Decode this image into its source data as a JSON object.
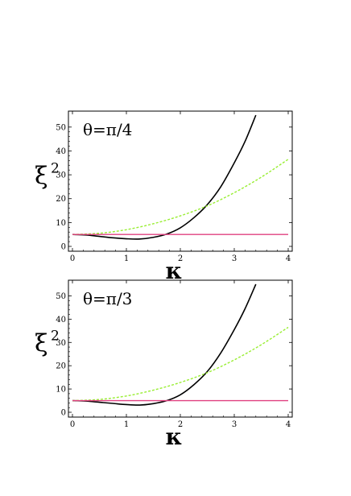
{
  "colors": {
    "background": "#ffffff",
    "frame": "#000000",
    "black_curve": "#000000",
    "green_curve": "#99ee33",
    "pink_line": "#e04080"
  },
  "chart_data": [
    {
      "type": "line",
      "annotation": "θ=π/4",
      "ylabel": "ξ",
      "ylabel_sup": "2",
      "xlabel": "κ",
      "xlim": [
        0,
        4
      ],
      "ylim": [
        0,
        55
      ],
      "xticks": [
        0,
        1,
        2,
        3,
        4
      ],
      "yticks": [
        0,
        10,
        20,
        30,
        40,
        50
      ],
      "series": [
        {
          "color": "#000000",
          "style": "solid",
          "x": [
            0,
            0.25,
            0.5,
            0.75,
            1.0,
            1.25,
            1.5,
            1.75,
            2.0,
            2.25,
            2.5,
            2.75,
            3.0,
            3.2,
            3.4
          ],
          "y": [
            5.0,
            4.8,
            4.2,
            3.6,
            3.2,
            3.1,
            3.8,
            5.2,
            7.8,
            12.0,
            17.5,
            25.0,
            35.0,
            44.0,
            55.0
          ]
        },
        {
          "color": "#99ee33",
          "style": "dashed",
          "x": [
            0,
            0.5,
            1.0,
            1.5,
            2.0,
            2.5,
            3.0,
            3.5,
            4.0
          ],
          "y": [
            5.0,
            5.5,
            7.0,
            9.5,
            12.8,
            17.0,
            22.5,
            29.0,
            36.5
          ]
        },
        {
          "color": "#e04080",
          "style": "solid",
          "x": [
            0,
            4
          ],
          "y": [
            5.0,
            5.0
          ]
        }
      ]
    },
    {
      "type": "line",
      "annotation": "θ=π/3",
      "ylabel": "ξ",
      "ylabel_sup": "2",
      "xlabel": "κ",
      "xlim": [
        0,
        4
      ],
      "ylim": [
        0,
        55
      ],
      "xticks": [
        0,
        1,
        2,
        3,
        4
      ],
      "yticks": [
        0,
        10,
        20,
        30,
        40,
        50
      ],
      "series": [
        {
          "color": "#000000",
          "style": "solid",
          "x": [
            0,
            0.25,
            0.5,
            0.75,
            1.0,
            1.25,
            1.5,
            1.75,
            2.0,
            2.25,
            2.5,
            2.75,
            3.0,
            3.2,
            3.4
          ],
          "y": [
            5.0,
            4.8,
            4.3,
            3.8,
            3.3,
            3.1,
            3.7,
            5.0,
            7.5,
            11.8,
            17.5,
            25.5,
            35.5,
            44.5,
            55.0
          ]
        },
        {
          "color": "#99ee33",
          "style": "dashed",
          "x": [
            0,
            0.5,
            1.0,
            1.5,
            2.0,
            2.5,
            3.0,
            3.5,
            4.0
          ],
          "y": [
            5.0,
            5.5,
            7.0,
            9.5,
            12.8,
            17.0,
            22.5,
            29.0,
            36.5
          ]
        },
        {
          "color": "#e04080",
          "style": "solid",
          "x": [
            0,
            4
          ],
          "y": [
            5.0,
            5.0
          ]
        }
      ]
    }
  ]
}
